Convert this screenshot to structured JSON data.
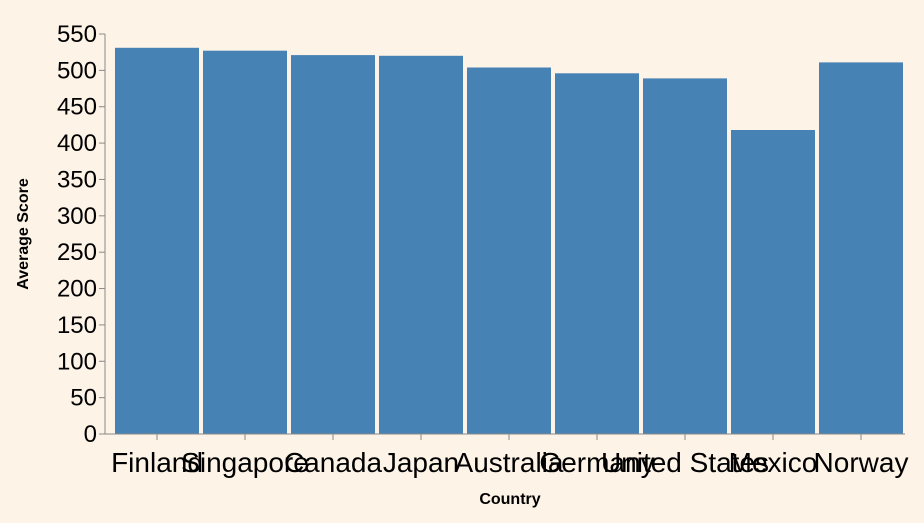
{
  "chart_data": {
    "type": "bar",
    "categories": [
      "Finland",
      "Singapore",
      "Canada",
      "Japan",
      "Australia",
      "Germany",
      "United States",
      "Mexico",
      "Norway"
    ],
    "values": [
      531,
      527,
      521,
      520,
      504,
      496,
      489,
      418,
      511
    ],
    "xlabel": "Country",
    "ylabel": "Average Score",
    "ylim": [
      0,
      550
    ],
    "yticks": [
      0,
      50,
      100,
      150,
      200,
      250,
      300,
      350,
      400,
      450,
      500,
      550
    ],
    "grid": false,
    "bar_color": "#4682b4",
    "background": "#fdf3e7"
  }
}
